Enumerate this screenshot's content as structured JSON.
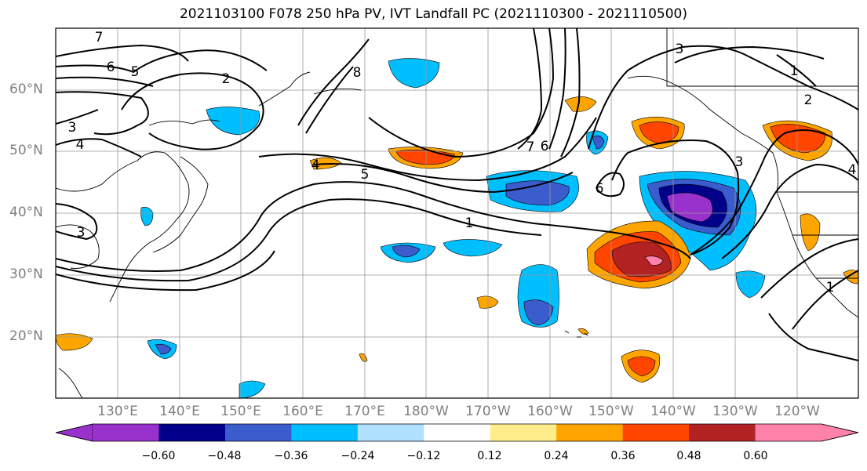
{
  "title": "2021103100 F078 250 hPa PV, IVT Landfall PC (2021110300 - 2021110500)",
  "lat_labels": [
    "60°N",
    "50°N",
    "40°N",
    "30°N",
    "20°N"
  ],
  "lon_labels": [
    "130°E",
    "140°E",
    "150°E",
    "160°E",
    "170°E",
    "180°W",
    "170°W",
    "160°W",
    "150°W",
    "140°W",
    "130°W",
    "120°W"
  ],
  "colorbar": {
    "ticks": [
      "−0.60",
      "−0.48",
      "−0.36",
      "−0.24",
      "−0.12",
      "0.12",
      "0.24",
      "0.36",
      "0.48",
      "0.60"
    ],
    "colors": [
      "#9932cc",
      "#00008b",
      "#3a5ccc",
      "#00bfff",
      "#b0e2ff",
      "#ffffff",
      "#ffec8b",
      "#ffa500",
      "#ff4500",
      "#b22222",
      "#ff82ab"
    ]
  },
  "contour_labels": [
    "7",
    "6",
    "5",
    "2",
    "3",
    "4",
    "8",
    "4",
    "5",
    "1",
    "7",
    "6",
    "6",
    "3",
    "3",
    "2",
    "1",
    "4",
    "3",
    "1"
  ]
}
